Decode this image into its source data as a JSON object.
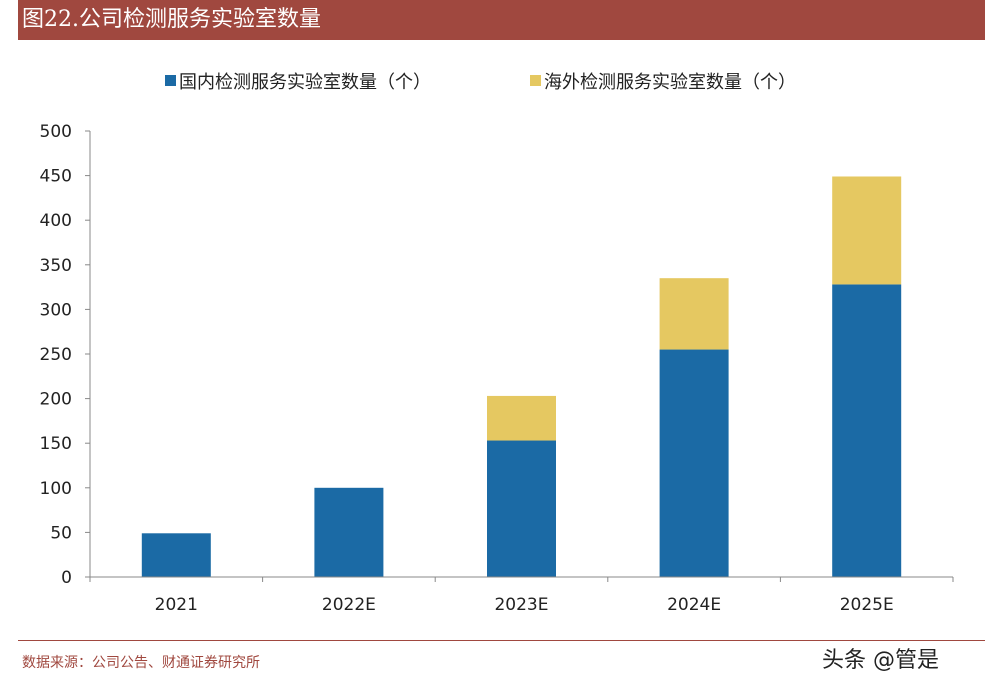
{
  "title": "图22.公司检测服务实验室数量",
  "source": "数据来源：公司公告、财通证券研究所",
  "watermark": "头条 @管是",
  "chart_data": {
    "type": "bar",
    "stacked": true,
    "categories": [
      "2021",
      "2022E",
      "2023E",
      "2024E",
      "2025E"
    ],
    "series": [
      {
        "name": "国内检测服务实验室数量（个）",
        "color": "#1B6AA5",
        "values": [
          49,
          100,
          153,
          255,
          328
        ]
      },
      {
        "name": "海外检测服务实验室数量（个）",
        "color": "#E5C861",
        "values": [
          0,
          0,
          50,
          80,
          121
        ]
      }
    ],
    "ylim": [
      0,
      500
    ],
    "yticks": [
      0,
      50,
      100,
      150,
      200,
      250,
      300,
      350,
      400,
      450,
      500
    ],
    "legend_position": "top",
    "grid": false
  }
}
